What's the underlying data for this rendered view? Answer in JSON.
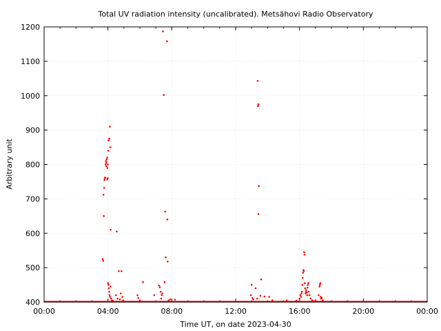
{
  "chart_data": {
    "type": "scatter",
    "title": "Total UV radiation intensity (uncalibrated). Metsähovi Radio Observatory",
    "xlabel": "Time UT, on date 2023-04-30",
    "ylabel": "Arbitrary unit",
    "xlim": [
      0,
      24
    ],
    "ylim": [
      400,
      1200
    ],
    "x_ticks": [
      {
        "value": 0,
        "label": "00:00"
      },
      {
        "value": 4,
        "label": "04:00"
      },
      {
        "value": 8,
        "label": "08:00"
      },
      {
        "value": 12,
        "label": "12:00"
      },
      {
        "value": 16,
        "label": "16:00"
      },
      {
        "value": 20,
        "label": "20:00"
      },
      {
        "value": 24,
        "label": "00:00"
      }
    ],
    "y_ticks": [
      {
        "value": 400,
        "label": "400"
      },
      {
        "value": 500,
        "label": "500"
      },
      {
        "value": 600,
        "label": "600"
      },
      {
        "value": 700,
        "label": "700"
      },
      {
        "value": 800,
        "label": "800"
      },
      {
        "value": 900,
        "label": "900"
      },
      {
        "value": 1000,
        "label": "1000"
      },
      {
        "value": 1100,
        "label": "1100"
      },
      {
        "value": 1200,
        "label": "1200"
      }
    ],
    "grid": true,
    "series_color": "#ff0000",
    "baseline_value": 400,
    "points": [
      [
        3.67,
        525
      ],
      [
        3.7,
        520
      ],
      [
        3.72,
        712
      ],
      [
        3.74,
        650
      ],
      [
        3.76,
        732
      ],
      [
        3.78,
        755
      ],
      [
        3.8,
        760
      ],
      [
        3.83,
        762
      ],
      [
        3.85,
        800
      ],
      [
        3.87,
        810
      ],
      [
        3.89,
        805
      ],
      [
        3.91,
        795
      ],
      [
        3.93,
        815
      ],
      [
        3.95,
        820
      ],
      [
        3.97,
        790
      ],
      [
        3.99,
        800
      ],
      [
        4.02,
        840
      ],
      [
        3.98,
        760
      ],
      [
        3.96,
        756
      ],
      [
        4.05,
        870
      ],
      [
        4.08,
        875
      ],
      [
        4.12,
        910
      ],
      [
        4.15,
        850
      ],
      [
        4.17,
        610
      ],
      [
        4.0,
        455
      ],
      [
        4.03,
        450
      ],
      [
        4.05,
        440
      ],
      [
        4.08,
        430
      ],
      [
        4.1,
        420
      ],
      [
        4.13,
        415
      ],
      [
        4.16,
        445
      ],
      [
        4.2,
        410
      ],
      [
        4.25,
        405
      ],
      [
        4.3,
        404
      ],
      [
        4.55,
        605
      ],
      [
        4.68,
        490
      ],
      [
        4.85,
        490
      ],
      [
        4.5,
        420
      ],
      [
        4.6,
        410
      ],
      [
        4.75,
        408
      ],
      [
        4.8,
        425
      ],
      [
        4.9,
        415
      ],
      [
        4.95,
        405
      ],
      [
        5.85,
        420
      ],
      [
        5.9,
        412
      ],
      [
        6.0,
        405
      ],
      [
        6.2,
        458
      ],
      [
        6.9,
        420
      ],
      [
        7.2,
        448
      ],
      [
        7.25,
        443
      ],
      [
        7.3,
        430
      ],
      [
        7.33,
        410
      ],
      [
        7.37,
        420
      ],
      [
        7.4,
        425
      ],
      [
        7.45,
        1187
      ],
      [
        7.5,
        1002
      ],
      [
        7.55,
        458
      ],
      [
        7.58,
        663
      ],
      [
        7.62,
        530
      ],
      [
        7.7,
        1158
      ],
      [
        7.72,
        640
      ],
      [
        7.74,
        518
      ],
      [
        7.8,
        405
      ],
      [
        7.9,
        408
      ],
      [
        8.2,
        407
      ],
      [
        12.95,
        420
      ],
      [
        13.0,
        450
      ],
      [
        13.05,
        412
      ],
      [
        13.1,
        408
      ],
      [
        13.25,
        440
      ],
      [
        13.38,
        1043
      ],
      [
        13.4,
        970
      ],
      [
        13.42,
        975
      ],
      [
        13.45,
        737
      ],
      [
        13.43,
        656
      ],
      [
        13.35,
        410
      ],
      [
        13.55,
        418
      ],
      [
        13.6,
        466
      ],
      [
        13.8,
        416
      ],
      [
        14.1,
        415
      ],
      [
        14.3,
        405
      ],
      [
        15.2,
        405
      ],
      [
        15.8,
        404
      ],
      [
        16.0,
        410
      ],
      [
        16.05,
        420
      ],
      [
        16.1,
        415
      ],
      [
        16.12,
        425
      ],
      [
        16.15,
        430
      ],
      [
        16.18,
        450
      ],
      [
        16.2,
        470
      ],
      [
        16.22,
        485
      ],
      [
        16.25,
        493
      ],
      [
        16.27,
        490
      ],
      [
        16.29,
        545
      ],
      [
        16.31,
        538
      ],
      [
        16.33,
        455
      ],
      [
        16.35,
        440
      ],
      [
        16.38,
        425
      ],
      [
        16.4,
        430
      ],
      [
        16.42,
        435
      ],
      [
        16.45,
        428
      ],
      [
        16.48,
        420
      ],
      [
        16.5,
        442
      ],
      [
        16.52,
        450
      ],
      [
        16.55,
        455
      ],
      [
        16.58,
        430
      ],
      [
        16.62,
        420
      ],
      [
        16.7,
        410
      ],
      [
        16.8,
        405
      ],
      [
        17.0,
        405
      ],
      [
        17.2,
        420
      ],
      [
        17.25,
        445
      ],
      [
        17.28,
        450
      ],
      [
        17.3,
        455
      ],
      [
        17.33,
        415
      ],
      [
        17.35,
        410
      ],
      [
        17.4,
        412
      ],
      [
        17.45,
        405
      ]
    ]
  }
}
